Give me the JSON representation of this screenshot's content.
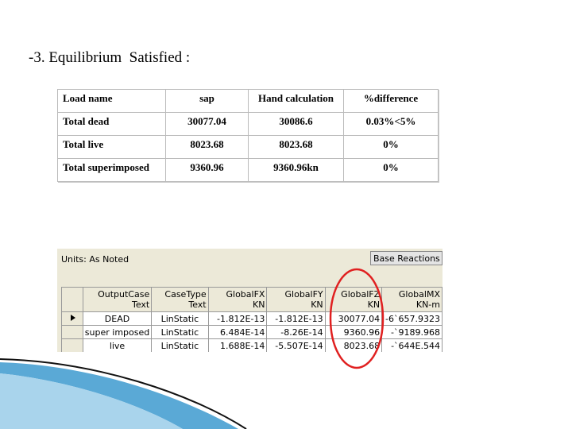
{
  "title": "-3. Equilibrium  Satisfied :",
  "table": {
    "header": [
      "Load name",
      "sap",
      "Hand calculation",
      "%difference"
    ],
    "rows": [
      [
        "Total dead",
        "30077.04",
        "30086.6",
        "0.03%<5%"
      ],
      [
        "Total live",
        "8023.68",
        "8023.68",
        "0%"
      ],
      [
        "Total superimposed",
        "9360.96",
        "9360.96kn",
        "0%"
      ]
    ]
  },
  "screenshot": {
    "units": "Units: As Noted",
    "panel": "Base Reactions",
    "columns": [
      {
        "name": "OutputCase",
        "unit": "Text"
      },
      {
        "name": "CaseType",
        "unit": "Text"
      },
      {
        "name": "GlobalFX",
        "unit": "KN"
      },
      {
        "name": "GlobalFY",
        "unit": "KN"
      },
      {
        "name": "GlobalFZ",
        "unit": "KN"
      },
      {
        "name": "GlobalMX",
        "unit": "KN-m"
      }
    ],
    "rows": [
      [
        "DEAD",
        "LinStatic",
        "-1.812E-13",
        "-1.812E-13",
        "30077.04",
        "-6`657.9323"
      ],
      [
        "super imposed",
        "LinStatic",
        "6.484E-14",
        "-8.26E-14",
        "9360.96",
        "-`9189.968"
      ],
      [
        "live",
        "LinStatic",
        "1.688E-14",
        "-5.507E-14",
        "8023.68",
        "-`644E.544"
      ]
    ]
  }
}
